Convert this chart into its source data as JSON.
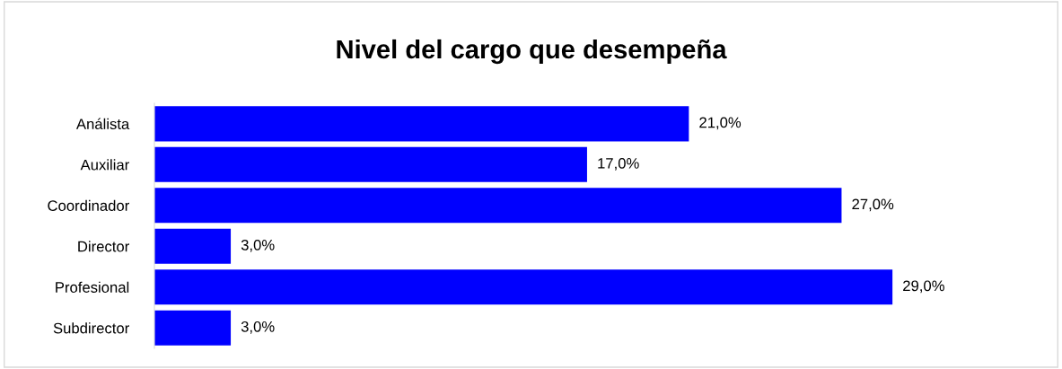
{
  "chart_data": {
    "type": "bar",
    "orientation": "horizontal",
    "title": "Nivel del cargo que desempeña",
    "categories": [
      "Análista",
      "Auxiliar",
      "Coordinador",
      "Director",
      "Profesional",
      "Subdirector"
    ],
    "values": [
      21.0,
      17.0,
      27.0,
      3.0,
      29.0,
      3.0
    ],
    "value_labels": [
      "21,0%",
      "17,0%",
      "27,0%",
      "3,0%",
      "29,0%",
      "3,0%"
    ],
    "color": "#0000ff",
    "grid": false,
    "legend": false
  }
}
